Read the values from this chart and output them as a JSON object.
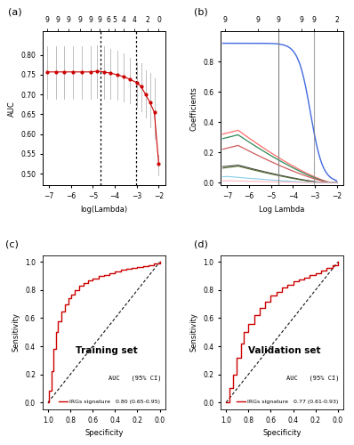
{
  "fig_width": 3.98,
  "fig_height": 5.0,
  "dpi": 100,
  "panel_a": {
    "label": "(a)",
    "xlabel": "log(Lambda)",
    "ylabel": "AUC",
    "ylim": [
      0.47,
      0.86
    ],
    "yticks": [
      0.5,
      0.55,
      0.6,
      0.65,
      0.7,
      0.75,
      0.8
    ],
    "xlim": [
      -7.3,
      -1.7
    ],
    "xticks": [
      -7,
      -6,
      -5,
      -4,
      -3,
      -2
    ],
    "top_numbers": [
      "9",
      "9",
      "9",
      "9",
      "9",
      "9",
      "6",
      "5",
      "4",
      "4",
      "2",
      "0"
    ],
    "top_x_positions": [
      -7.1,
      -6.6,
      -6.1,
      -5.6,
      -5.1,
      -4.7,
      -4.3,
      -4.0,
      -3.6,
      -3.1,
      -2.5,
      -2.0
    ],
    "vline1": -4.65,
    "vline2": -3.05,
    "dot_x": [
      -7.1,
      -6.7,
      -6.3,
      -5.9,
      -5.5,
      -5.1,
      -4.8,
      -4.5,
      -4.2,
      -3.9,
      -3.6,
      -3.3,
      -3.0,
      -2.8,
      -2.6,
      -2.4,
      -2.2,
      -2.0
    ],
    "dot_y": [
      0.757,
      0.757,
      0.757,
      0.757,
      0.757,
      0.757,
      0.759,
      0.757,
      0.754,
      0.75,
      0.745,
      0.738,
      0.73,
      0.72,
      0.7,
      0.68,
      0.655,
      0.525
    ],
    "err_lo": [
      0.068,
      0.068,
      0.068,
      0.068,
      0.068,
      0.068,
      0.068,
      0.068,
      0.065,
      0.063,
      0.062,
      0.06,
      0.06,
      0.062,
      0.058,
      0.062,
      0.068,
      0.03
    ],
    "err_hi": [
      0.065,
      0.065,
      0.065,
      0.065,
      0.065,
      0.065,
      0.065,
      0.065,
      0.062,
      0.06,
      0.058,
      0.055,
      0.052,
      0.058,
      0.062,
      0.075,
      0.085,
      0.022
    ],
    "dot_color": "#cc0000",
    "err_color": "#c0c0c0",
    "line_color": "#cc0000"
  },
  "panel_b": {
    "label": "(b)",
    "xlabel": "Log Lambda",
    "ylabel": "Coefficients",
    "ylim": [
      -0.02,
      1.0
    ],
    "yticks": [
      0.0,
      0.2,
      0.4,
      0.6,
      0.8
    ],
    "xlim": [
      -7.3,
      -1.7
    ],
    "xticks": [
      -7,
      -6,
      -5,
      -4,
      -3,
      -2
    ],
    "top_numbers": [
      "9",
      "9",
      "9",
      "9",
      "9",
      "2"
    ],
    "top_x_positions": [
      -7.1,
      -5.6,
      -4.65,
      -3.6,
      -3.05,
      -2.0
    ],
    "vline1": -4.65,
    "vline2": -3.05
  },
  "panel_c": {
    "label": "(c)",
    "title": "Training set",
    "xlabel": "Specificity",
    "ylabel": "Sensitivity",
    "auc_header": "AUC   (95% CI)",
    "legend_label": "IRGs signature",
    "legend_auc": "0.80 (0.65-0.95)",
    "curve_color": "#cc0000",
    "diag_color": "#111111"
  },
  "panel_d": {
    "label": "(d)",
    "title": "Validation set",
    "xlabel": "Specificity",
    "ylabel": "Sensitivity",
    "auc_header": "AUC   (95% CI)",
    "legend_label": "IRGs signature",
    "legend_auc": "0.77 (0.61-0.93)",
    "curve_color": "#cc0000",
    "diag_color": "#111111"
  }
}
